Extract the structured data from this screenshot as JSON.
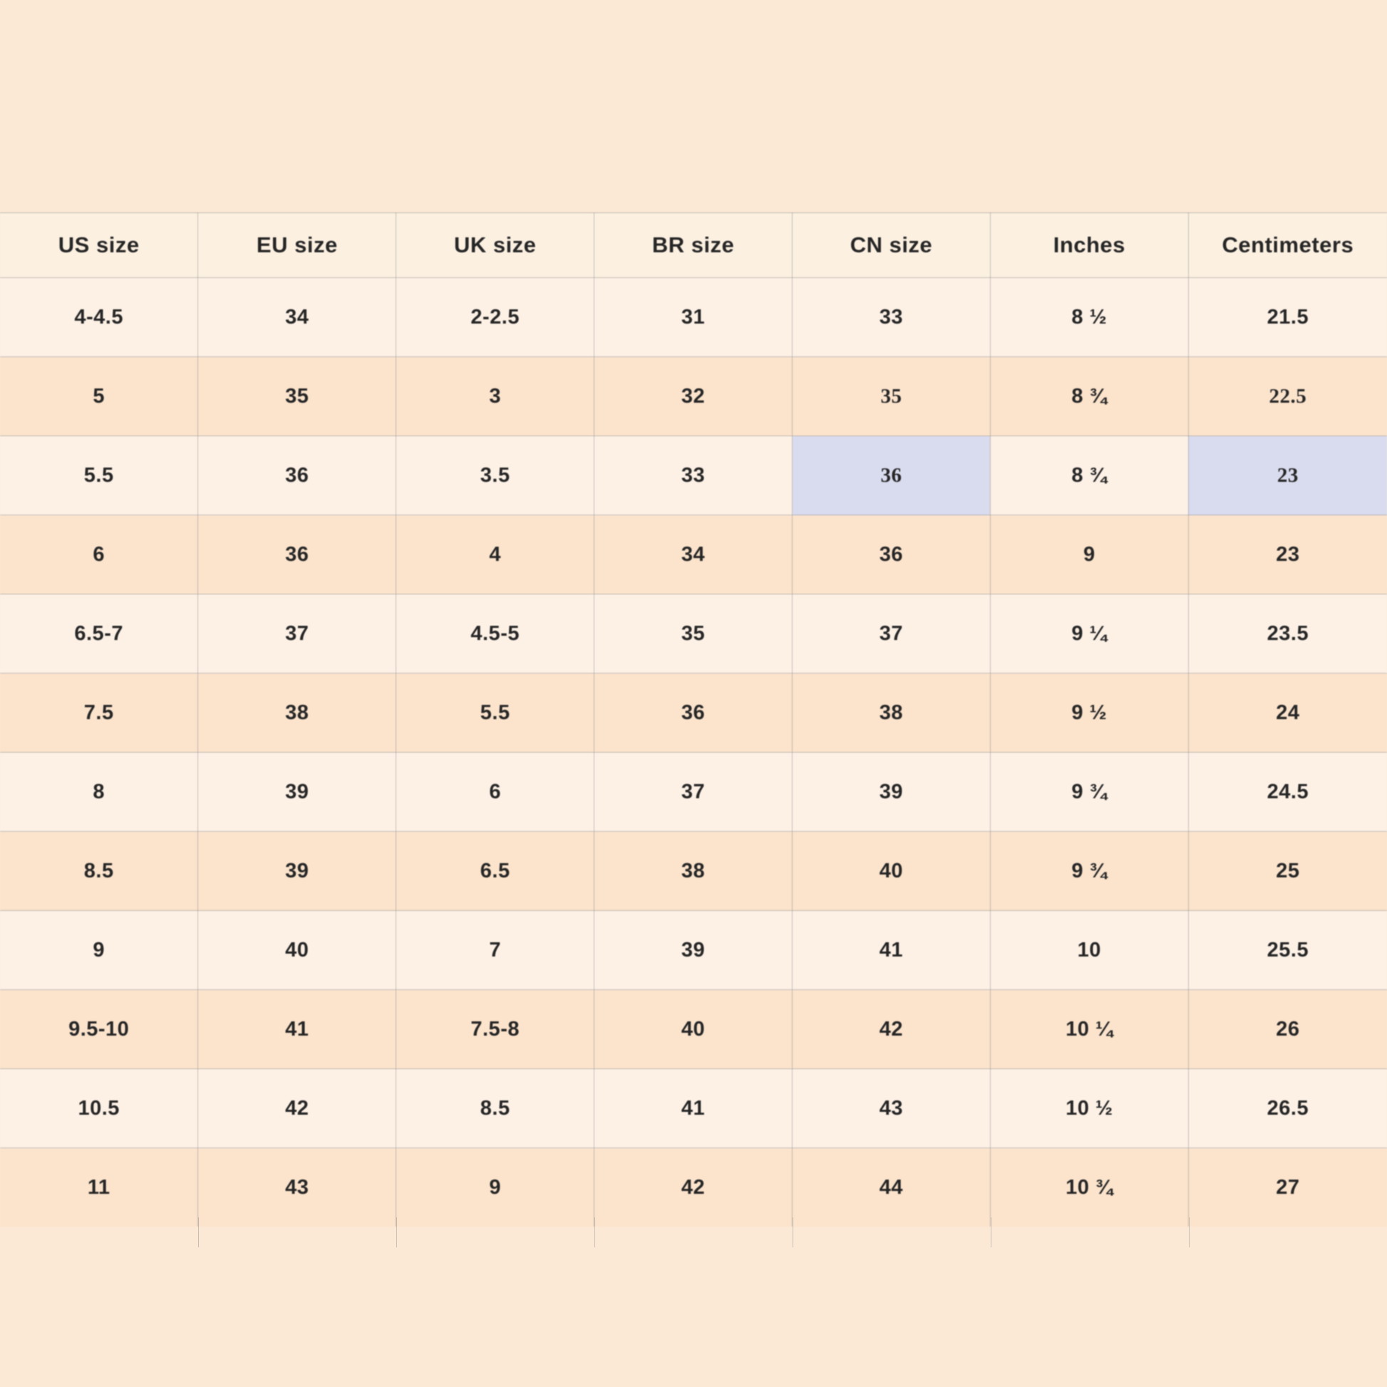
{
  "colors": {
    "background": "#fbe8d5",
    "header_bg": "#fcf0e1",
    "row_light": "#fdf1e6",
    "row_peach": "#fbe3cc",
    "highlight": "#d9dbee",
    "border": "#8c8c8c",
    "text": "#262626"
  },
  "table": {
    "columns": [
      "US size",
      "EU size",
      "UK size",
      "BR size",
      "CN size",
      "Inches",
      "Centimeters"
    ],
    "rows": [
      [
        "4-4.5",
        "34",
        "2-2.5",
        "31",
        "33",
        "8 ½",
        "21.5"
      ],
      [
        "5",
        "35",
        "3",
        "32",
        "35",
        "8 ¾",
        "22.5"
      ],
      [
        "5.5",
        "36",
        "3.5",
        "33",
        "36",
        "8 ¾",
        "23"
      ],
      [
        "6",
        "36",
        "4",
        "34",
        "36",
        "9",
        "23"
      ],
      [
        "6.5-7",
        "37",
        "4.5-5",
        "35",
        "37",
        "9 ¼",
        "23.5"
      ],
      [
        "7.5",
        "38",
        "5.5",
        "36",
        "38",
        "9 ½",
        "24"
      ],
      [
        "8",
        "39",
        "6",
        "37",
        "39",
        "9 ¾",
        "24.5"
      ],
      [
        "8.5",
        "39",
        "6.5",
        "38",
        "40",
        "9 ¾",
        "25"
      ],
      [
        "9",
        "40",
        "7",
        "39",
        "41",
        "10",
        "25.5"
      ],
      [
        "9.5-10",
        "41",
        "7.5-8",
        "40",
        "42",
        "10 ¼",
        "26"
      ],
      [
        "10.5",
        "42",
        "8.5",
        "41",
        "43",
        "10 ½",
        "26.5"
      ],
      [
        "11",
        "43",
        "9",
        "42",
        "44",
        "10 ¾",
        "27"
      ]
    ],
    "highlighted_cells": [
      {
        "row": 2,
        "col": 4
      },
      {
        "row": 2,
        "col": 6
      }
    ]
  }
}
